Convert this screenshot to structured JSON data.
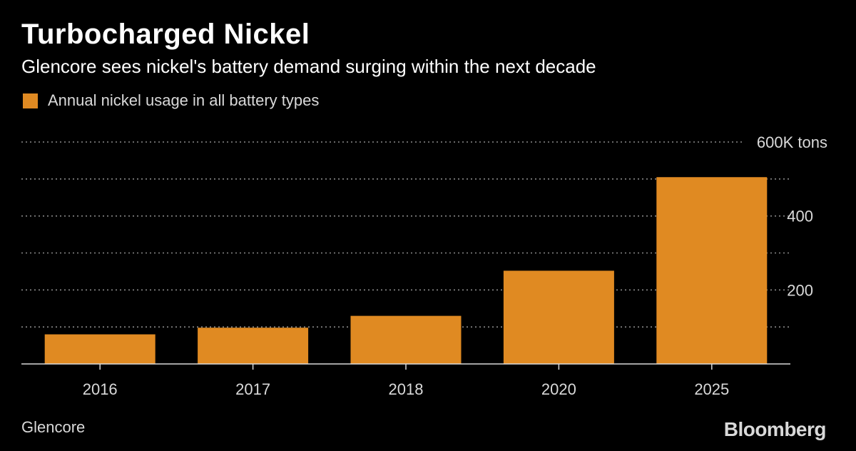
{
  "header": {
    "title": "Turbocharged Nickel",
    "subtitle": "Glencore sees nickel's battery demand surging within the next decade"
  },
  "legend": {
    "label": "Annual nickel usage in all battery types",
    "color": "#e08a22"
  },
  "footer": {
    "source": "Glencore",
    "brand": "Bloomberg"
  },
  "chart_data": {
    "type": "bar",
    "categories": [
      "2016",
      "2017",
      "2018",
      "2020",
      "2025"
    ],
    "series": [
      {
        "name": "Annual nickel usage in all battery types",
        "values": [
          80,
          98,
          130,
          252,
          505
        ]
      }
    ],
    "ylim": [
      0,
      600
    ],
    "y_ticks": [
      {
        "value": 600,
        "label": "600K tons"
      },
      {
        "value": 500,
        "label": ""
      },
      {
        "value": 400,
        "label": "400"
      },
      {
        "value": 300,
        "label": ""
      },
      {
        "value": 200,
        "label": "200"
      },
      {
        "value": 100,
        "label": ""
      }
    ],
    "grid": true,
    "grid_style": "dotted",
    "y_axis_position": "right",
    "bar_color": "#e08a22",
    "background": "#000000"
  }
}
